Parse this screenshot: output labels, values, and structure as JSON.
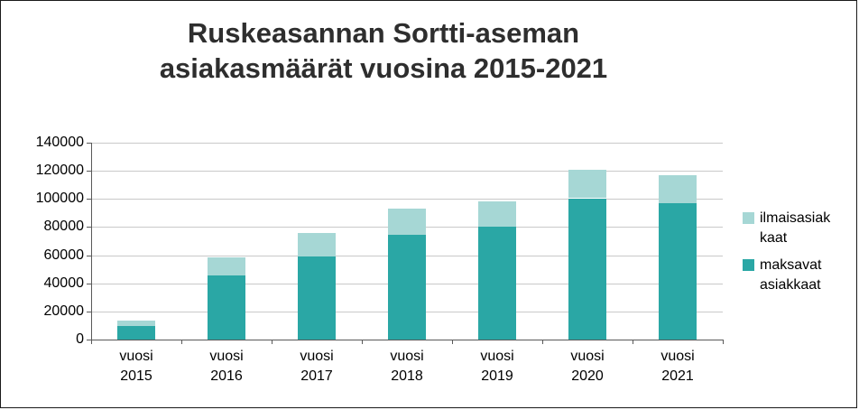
{
  "header": {
    "title_lines": [
      "Ruskeasannan Sortti-aseman",
      "asiakasmäärät vuosina 2015-2021"
    ]
  },
  "chart_data": {
    "type": "bar",
    "stacked": true,
    "title": "Ruskeasannan Sortti-aseman asiakasmäärät vuosina 2015-2021",
    "xlabel": "",
    "ylabel": "",
    "categories": [
      "vuosi 2015",
      "vuosi 2016",
      "vuosi 2017",
      "vuosi 2018",
      "vuosi 2019",
      "vuosi 2020",
      "vuosi 2021"
    ],
    "series": [
      {
        "name": "maksavat asiakkaat",
        "color": "#2aa7a5",
        "values": [
          9500,
          45500,
          59000,
          74500,
          80000,
          100500,
          97000
        ]
      },
      {
        "name": "ilmaisasiakkaat",
        "color": "#a6d7d5",
        "values": [
          4000,
          13000,
          17000,
          18500,
          18500,
          20500,
          20000
        ]
      }
    ],
    "totals": [
      13500,
      58500,
      76000,
      93000,
      98500,
      121000,
      117000
    ],
    "ylim": [
      0,
      140000
    ],
    "yticks": [
      0,
      20000,
      40000,
      60000,
      80000,
      100000,
      120000,
      140000
    ],
    "grid": true,
    "legend_position": "right",
    "legend": [
      {
        "label": "ilmaisasiak\nkaat",
        "series": "ilmaisasiakkaat",
        "color": "#a6d7d5"
      },
      {
        "label": "maksavat\nasiakkaat",
        "series": "maksavat asiakkaat",
        "color": "#2aa7a5"
      }
    ]
  }
}
